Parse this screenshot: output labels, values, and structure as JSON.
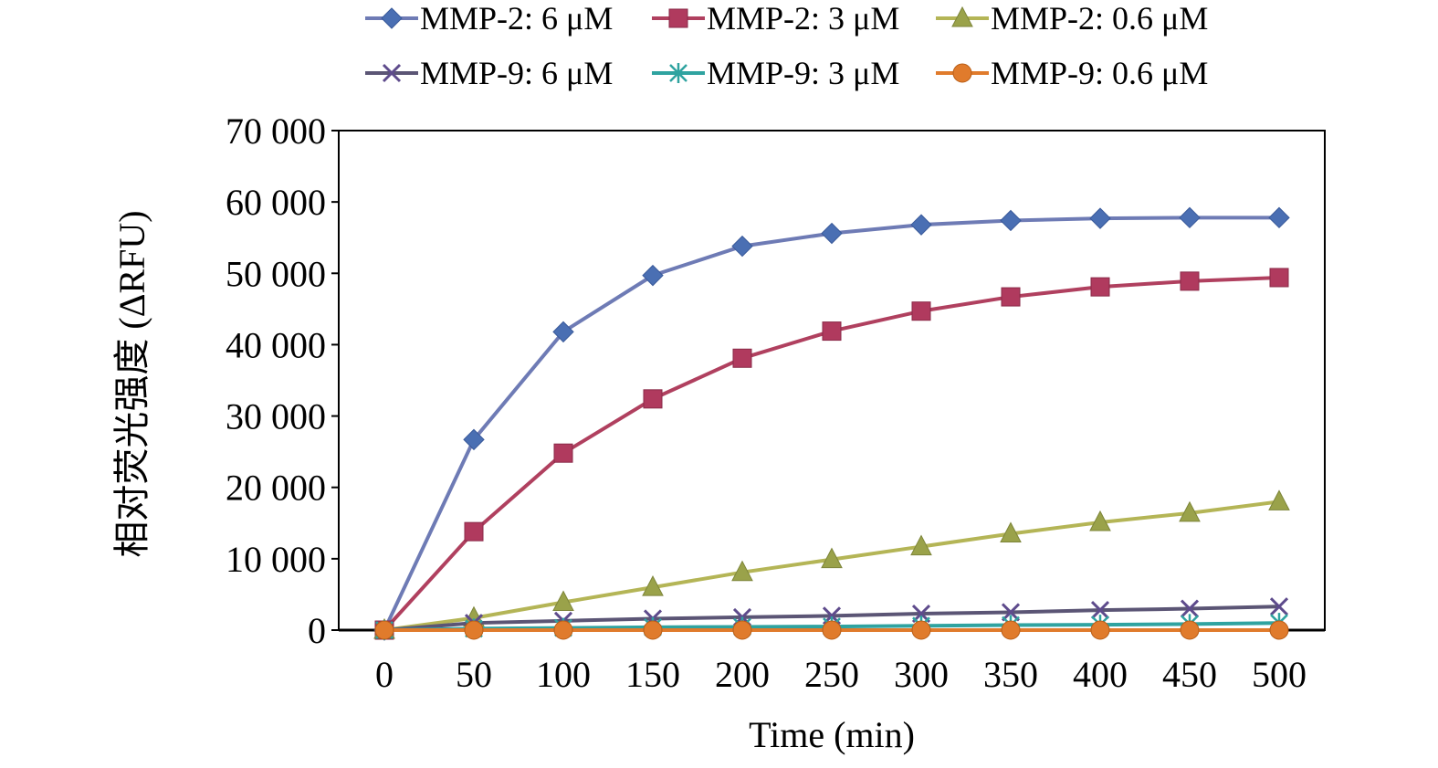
{
  "chart_data": {
    "type": "line",
    "title": "",
    "xlabel": "Time (min)",
    "ylabel": "相对荧光强度 (ΔRFU)",
    "xlim": [
      0,
      500
    ],
    "ylim": [
      0,
      70000
    ],
    "x": [
      0,
      50,
      100,
      150,
      200,
      250,
      300,
      350,
      400,
      450,
      500
    ],
    "x_tick_labels": [
      "0",
      "50",
      "100",
      "150",
      "200",
      "250",
      "300",
      "350",
      "400",
      "450",
      "500"
    ],
    "y_ticks": [
      0,
      10000,
      20000,
      30000,
      40000,
      50000,
      60000,
      70000
    ],
    "y_tick_labels": [
      "0",
      "10 000",
      "20 000",
      "30 000",
      "40 000",
      "50 000",
      "60 000",
      "70 000"
    ],
    "grid": false,
    "legend_position": "top",
    "series": [
      {
        "name": "MMP-2: 6 μM",
        "marker": "diamond",
        "color": "#4a6fb3",
        "values": [
          0,
          26700,
          41800,
          49700,
          53800,
          55600,
          56800,
          57400,
          57700,
          57800,
          57800
        ]
      },
      {
        "name": "MMP-2: 3 μM",
        "marker": "square",
        "color": "#b03a5e",
        "values": [
          0,
          13800,
          24800,
          32400,
          38100,
          41900,
          44700,
          46700,
          48100,
          48900,
          49400
        ]
      },
      {
        "name": "MMP-2: 0.6 μM",
        "marker": "triangle",
        "color": "#9aa24a",
        "values": [
          0,
          1700,
          3900,
          6000,
          8100,
          9900,
          11700,
          13500,
          15100,
          16400,
          18000
        ]
      },
      {
        "name": "MMP-9: 6 μM",
        "marker": "x",
        "color": "#5e4b8c",
        "values": [
          0,
          1000,
          1300,
          1600,
          1800,
          2000,
          2300,
          2500,
          2800,
          3000,
          3300
        ]
      },
      {
        "name": "MMP-9: 3 μM",
        "marker": "star",
        "color": "#2fa3a0",
        "values": [
          0,
          200,
          300,
          400,
          450,
          500,
          600,
          700,
          750,
          850,
          1000
        ]
      },
      {
        "name": "MMP-9: 0.6 μM",
        "marker": "circle",
        "color": "#e07b2c",
        "values": [
          0,
          0,
          0,
          0,
          0,
          0,
          0,
          0,
          0,
          0,
          0
        ]
      }
    ]
  }
}
